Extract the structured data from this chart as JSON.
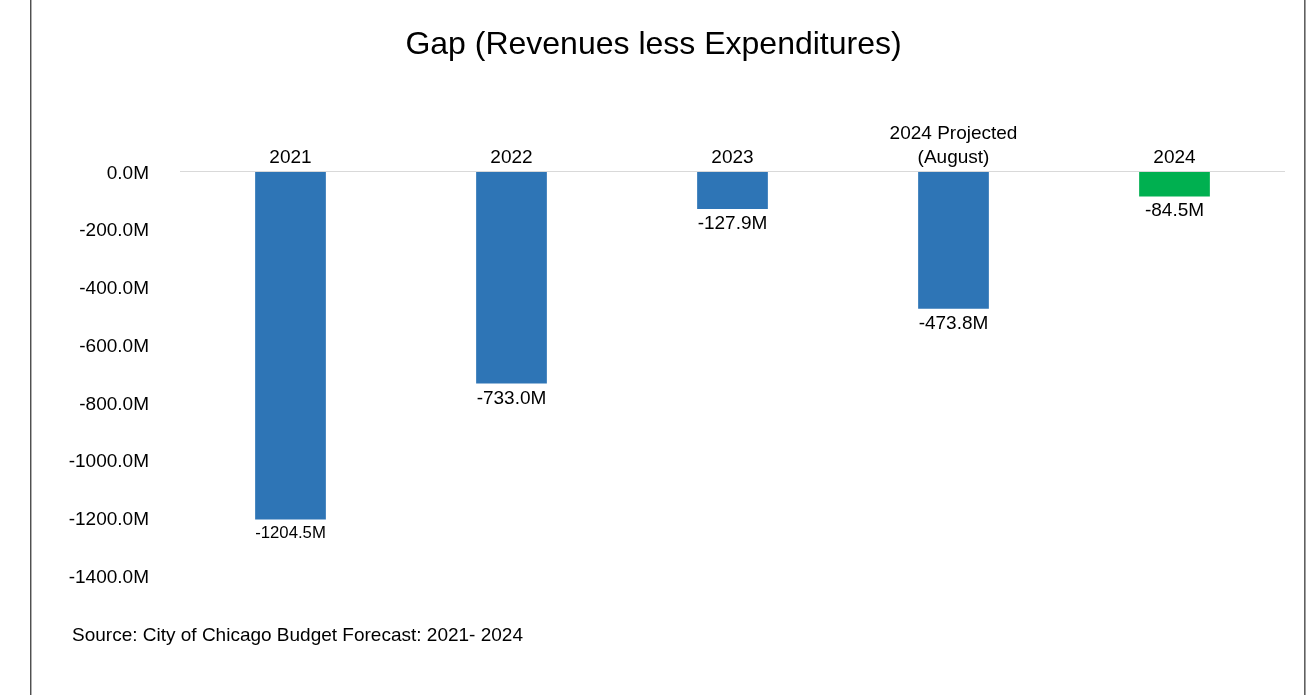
{
  "chart_data": {
    "type": "bar",
    "title": "Gap (Revenues less Expenditures)",
    "categories": [
      "2021",
      "2022",
      "2023",
      "2024 Projected\n(August)",
      "2024"
    ],
    "values": [
      -1204.5,
      -733.0,
      -127.9,
      -473.8,
      -84.5
    ],
    "colors": [
      "#2e75b6",
      "#2e75b6",
      "#2e75b6",
      "#2e75b6",
      "#00b050"
    ],
    "value_labels": [
      "-1204.5M",
      "-733.0M",
      "-127.9M",
      "-473.8M",
      "-84.5M"
    ],
    "ylim": [
      -1400,
      0
    ],
    "yticks": [
      {
        "value": 0,
        "label": "0.0M"
      },
      {
        "value": -200,
        "label": "-200.0M"
      },
      {
        "value": -400,
        "label": "-400.0M"
      },
      {
        "value": -600,
        "label": "-600.0M"
      },
      {
        "value": -800,
        "label": "-800.0M"
      },
      {
        "value": -1000,
        "label": "-1000.0M"
      },
      {
        "value": -1200,
        "label": "-1200.0M"
      },
      {
        "value": -1400,
        "label": "-1400.0M"
      }
    ],
    "grid": false,
    "annotations": [
      "Source: City of Chicago Budget Forecast: 2021- 2024"
    ]
  }
}
